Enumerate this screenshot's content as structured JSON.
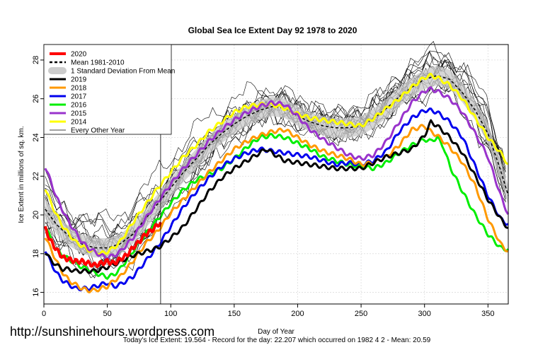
{
  "chart_data": {
    "type": "line",
    "title": "Global Sea Ice Extent Day 92 1978 to 2020",
    "xlabel": "Day of Year",
    "ylabel": "Ice Extent in millions of sq. km.",
    "xlim": [
      0,
      366
    ],
    "ylim": [
      15.4,
      28.8
    ],
    "x_ticks": [
      0,
      50,
      100,
      150,
      200,
      250,
      300,
      350
    ],
    "y_ticks": [
      16,
      18,
      20,
      22,
      24,
      26,
      28
    ],
    "grid": true,
    "current_day": 92,
    "legend_position": "top-left",
    "legend": [
      {
        "label": "2020",
        "color": "#ff0000",
        "style": "thick"
      },
      {
        "label": "Mean 1981-2010",
        "color": "#000000",
        "style": "dashed"
      },
      {
        "label": "1 Standard Deviation From Mean",
        "color": "#cccccc",
        "style": "band"
      },
      {
        "label": "2019",
        "color": "#000000",
        "style": "thick"
      },
      {
        "label": "2018",
        "color": "#ff9900",
        "style": "thick"
      },
      {
        "label": "2017",
        "color": "#0000ee",
        "style": "thick"
      },
      {
        "label": "2016",
        "color": "#00ee00",
        "style": "thick"
      },
      {
        "label": "2015",
        "color": "#9933cc",
        "style": "thick"
      },
      {
        "label": "2014",
        "color": "#ffff00",
        "style": "thick"
      },
      {
        "label": "Every Other Year",
        "color": "#000000",
        "style": "thin"
      }
    ],
    "series": [
      {
        "name": "2020",
        "color": "#ff0000",
        "width": 4,
        "x": [
          1,
          5,
          10,
          15,
          20,
          25,
          30,
          35,
          40,
          45,
          50,
          55,
          60,
          65,
          70,
          75,
          80,
          85,
          90,
          92
        ],
        "y": [
          19.3,
          18.7,
          18.2,
          17.8,
          17.7,
          17.6,
          17.6,
          17.5,
          17.4,
          17.5,
          17.6,
          17.5,
          17.7,
          17.9,
          18.3,
          18.6,
          19.0,
          19.2,
          19.5,
          19.6
        ]
      },
      {
        "name": "2019",
        "color": "#000000",
        "width": 3,
        "x": [
          1,
          5,
          10,
          15,
          20,
          25,
          30,
          40,
          50,
          60,
          70,
          80,
          90,
          100,
          110,
          120,
          130,
          140,
          150,
          160,
          170,
          175,
          180,
          190,
          200,
          210,
          220,
          230,
          240,
          250,
          260,
          270,
          280,
          290,
          300,
          305,
          310,
          320,
          330,
          340,
          350,
          360,
          366
        ],
        "y": [
          18.1,
          17.7,
          17.4,
          17.2,
          17.2,
          17.1,
          17.1,
          17.1,
          17.3,
          17.6,
          17.9,
          18.1,
          18.3,
          18.8,
          19.4,
          20.3,
          21.2,
          21.9,
          22.4,
          22.8,
          23.2,
          23.4,
          23.2,
          22.8,
          22.7,
          22.6,
          22.5,
          22.4,
          22.4,
          22.4,
          22.7,
          23.0,
          23.2,
          23.4,
          24.1,
          24.8,
          24.6,
          24.0,
          23.2,
          22.0,
          20.8,
          19.8,
          19.3
        ]
      },
      {
        "name": "2018",
        "color": "#ff9900",
        "width": 3,
        "x": [
          1,
          5,
          10,
          15,
          20,
          25,
          30,
          35,
          40,
          45,
          50,
          55,
          60,
          70,
          80,
          90,
          100,
          110,
          120,
          130,
          140,
          150,
          160,
          170,
          180,
          190,
          200,
          210,
          220,
          230,
          240,
          250,
          260,
          270,
          280,
          290,
          300,
          305,
          310,
          320,
          330,
          340,
          350,
          360,
          366
        ],
        "y": [
          18.9,
          18.3,
          17.6,
          17.0,
          16.6,
          16.4,
          16.2,
          16.1,
          16.1,
          16.2,
          16.3,
          16.6,
          16.8,
          17.6,
          18.5,
          19.2,
          20.1,
          20.8,
          21.5,
          22.2,
          22.8,
          23.4,
          23.8,
          24.1,
          24.3,
          24.4,
          24.0,
          23.6,
          23.3,
          23.1,
          22.9,
          22.6,
          22.7,
          23.0,
          23.6,
          24.4,
          24.6,
          24.3,
          24.1,
          23.5,
          22.7,
          21.5,
          19.8,
          18.5,
          18.1
        ]
      },
      {
        "name": "2017",
        "color": "#0000ee",
        "width": 3,
        "x": [
          1,
          5,
          10,
          15,
          20,
          25,
          30,
          35,
          40,
          45,
          50,
          55,
          60,
          70,
          80,
          90,
          100,
          110,
          120,
          130,
          140,
          150,
          160,
          170,
          180,
          190,
          200,
          210,
          220,
          230,
          240,
          250,
          260,
          270,
          280,
          290,
          300,
          305,
          310,
          320,
          330,
          340,
          350,
          360,
          366
        ],
        "y": [
          18.2,
          17.6,
          17.0,
          16.6,
          16.4,
          16.2,
          16.2,
          16.2,
          16.3,
          16.4,
          16.5,
          16.3,
          16.4,
          16.8,
          17.6,
          18.4,
          19.4,
          20.4,
          21.2,
          21.9,
          22.5,
          22.9,
          23.2,
          23.4,
          23.3,
          23.2,
          23.1,
          23.0,
          22.8,
          22.6,
          22.7,
          22.6,
          22.8,
          23.3,
          24.3,
          25.0,
          25.4,
          25.4,
          25.3,
          24.8,
          24.0,
          22.5,
          21.0,
          19.8,
          19.5
        ]
      },
      {
        "name": "2016",
        "color": "#00ee00",
        "width": 3,
        "x": [
          1,
          5,
          10,
          15,
          20,
          25,
          30,
          35,
          40,
          45,
          50,
          55,
          60,
          70,
          80,
          90,
          100,
          110,
          120,
          130,
          140,
          150,
          160,
          170,
          180,
          190,
          200,
          210,
          220,
          230,
          240,
          250,
          260,
          270,
          280,
          290,
          300,
          305,
          310,
          315,
          320,
          330,
          340,
          350,
          360,
          366
        ],
        "y": [
          19.5,
          18.8,
          18.2,
          17.9,
          17.7,
          17.5,
          17.3,
          17.2,
          17.0,
          16.9,
          16.8,
          16.9,
          17.2,
          18.1,
          19.0,
          19.8,
          20.6,
          21.3,
          21.8,
          22.1,
          22.4,
          22.9,
          23.5,
          24.0,
          24.1,
          24.0,
          23.7,
          23.4,
          23.0,
          22.8,
          22.6,
          22.5,
          22.4,
          22.7,
          23.2,
          23.6,
          23.9,
          23.8,
          24.0,
          23.5,
          22.5,
          21.2,
          20.0,
          19.0,
          18.3,
          18.2
        ]
      },
      {
        "name": "2015",
        "color": "#9933cc",
        "width": 3,
        "x": [
          1,
          5,
          10,
          15,
          20,
          25,
          30,
          35,
          40,
          45,
          50,
          55,
          60,
          70,
          80,
          90,
          100,
          110,
          120,
          130,
          140,
          150,
          160,
          170,
          180,
          190,
          200,
          210,
          220,
          230,
          240,
          250,
          260,
          270,
          280,
          290,
          300,
          305,
          310,
          320,
          330,
          340,
          350,
          360,
          366
        ],
        "y": [
          22.5,
          21.8,
          20.9,
          20.2,
          19.6,
          19.1,
          18.6,
          18.3,
          18.1,
          17.9,
          17.8,
          17.9,
          18.1,
          18.8,
          19.8,
          20.7,
          21.6,
          22.4,
          23.1,
          23.8,
          24.4,
          24.9,
          25.3,
          25.6,
          25.8,
          25.7,
          25.1,
          24.4,
          23.9,
          23.5,
          23.1,
          22.9,
          23.1,
          23.8,
          24.8,
          25.8,
          26.4,
          26.5,
          26.4,
          26.0,
          25.3,
          24.2,
          23.0,
          21.0,
          20.0
        ]
      },
      {
        "name": "2014",
        "color": "#ffff00",
        "width": 3,
        "x": [
          1,
          5,
          10,
          15,
          20,
          25,
          30,
          35,
          40,
          45,
          50,
          55,
          60,
          70,
          80,
          90,
          100,
          110,
          120,
          130,
          140,
          150,
          160,
          170,
          180,
          190,
          200,
          210,
          220,
          230,
          240,
          250,
          260,
          270,
          280,
          290,
          300,
          305,
          310,
          320,
          330,
          340,
          350,
          360,
          366
        ],
        "y": [
          21.4,
          20.7,
          20.0,
          19.4,
          19.0,
          18.6,
          18.4,
          18.2,
          18.1,
          18.0,
          18.1,
          18.3,
          18.6,
          19.6,
          20.5,
          21.4,
          22.2,
          23.0,
          23.6,
          24.3,
          24.8,
          25.3,
          25.6,
          25.7,
          25.7,
          25.5,
          25.2,
          25.0,
          24.9,
          24.8,
          24.7,
          24.6,
          25.0,
          25.5,
          26.0,
          26.6,
          27.1,
          27.2,
          27.1,
          26.7,
          26.0,
          25.0,
          24.0,
          23.2,
          22.6
        ]
      }
    ],
    "mean": {
      "name": "Mean 1981-2010",
      "x": [
        1,
        10,
        20,
        30,
        40,
        50,
        60,
        70,
        80,
        90,
        100,
        110,
        120,
        130,
        140,
        150,
        160,
        170,
        180,
        190,
        200,
        210,
        220,
        230,
        240,
        250,
        260,
        270,
        280,
        290,
        300,
        310,
        320,
        330,
        340,
        350,
        360,
        366
      ],
      "y": [
        20.3,
        19.5,
        18.9,
        18.5,
        18.3,
        18.3,
        18.5,
        19.0,
        19.8,
        20.6,
        21.4,
        22.2,
        22.9,
        23.6,
        24.2,
        24.7,
        25.1,
        25.4,
        25.6,
        25.5,
        25.1,
        24.8,
        24.6,
        24.5,
        24.5,
        24.6,
        25.0,
        25.5,
        26.1,
        26.6,
        27.0,
        27.2,
        27.0,
        26.3,
        25.4,
        24.2,
        22.3,
        21.0
      ],
      "sd": 0.5
    },
    "every_other_year_offsets": [
      1.6,
      1.2,
      0.8,
      0.4,
      0.0,
      -0.4,
      -0.8,
      -1.2,
      1.4,
      1.0,
      0.6,
      0.2,
      -0.2,
      -0.6,
      -1.0,
      0.9,
      0.3,
      -0.3
    ]
  },
  "footer": {
    "url": "http://sunshinehours.wordpress.com",
    "stats": "Today's Ice Extent: 19.564  - Record for the day: 22.207 which occurred on 1982 4 2  - Mean: 20.59"
  }
}
